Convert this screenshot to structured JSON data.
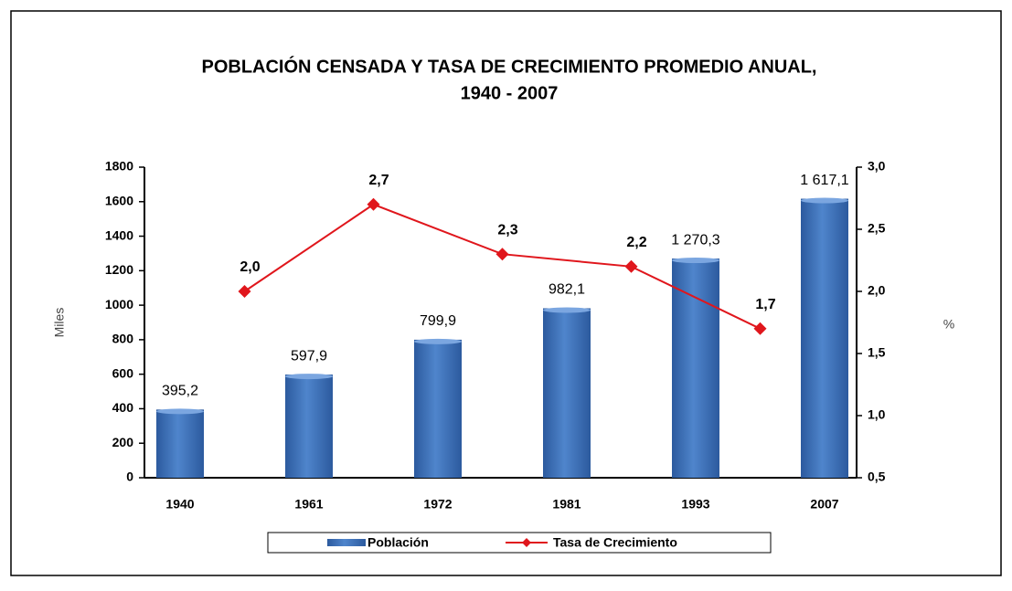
{
  "chart_data": {
    "type": "bar",
    "title": "POBLACIÓN CENSADA Y TASA DE CRECIMIENTO PROMEDIO ANUAL,",
    "subtitle": "1940 - 2007",
    "categories": [
      "1940",
      "1961",
      "1972",
      "1981",
      "1993",
      "2007"
    ],
    "ylabel": "Miles",
    "y2label": "%",
    "ylim": [
      0,
      1800
    ],
    "yticks": [
      0,
      200,
      400,
      600,
      800,
      1000,
      1200,
      1400,
      1600,
      1800
    ],
    "y2lim": [
      0.5,
      3.0
    ],
    "y2ticks": [
      {
        "value": 0.5,
        "label": "0,5"
      },
      {
        "value": 1.0,
        "label": "1,0"
      },
      {
        "value": 1.5,
        "label": "1,5"
      },
      {
        "value": 2.0,
        "label": "2,0"
      },
      {
        "value": 2.5,
        "label": "2,5"
      },
      {
        "value": 3.0,
        "label": "3,0"
      }
    ],
    "legend": "bottom",
    "series": [
      {
        "name": "Población",
        "type": "bar",
        "color": "#3f6fb5",
        "values": [
          395.2,
          597.9,
          799.9,
          982.1,
          1270.3,
          1617.1
        ],
        "value_labels": [
          "395,2",
          "597,9",
          "799,9",
          "982,1",
          "1 270,3",
          "1 617,1"
        ]
      },
      {
        "name": "Tasa de Crecimiento",
        "type": "line",
        "axis": "y2",
        "color": "#e0161c",
        "values": [
          null,
          2.0,
          2.7,
          2.3,
          2.2,
          1.7
        ],
        "value_labels": [
          null,
          "2,0",
          "2,7",
          "2,3",
          "2,2",
          "1,7"
        ]
      }
    ]
  }
}
